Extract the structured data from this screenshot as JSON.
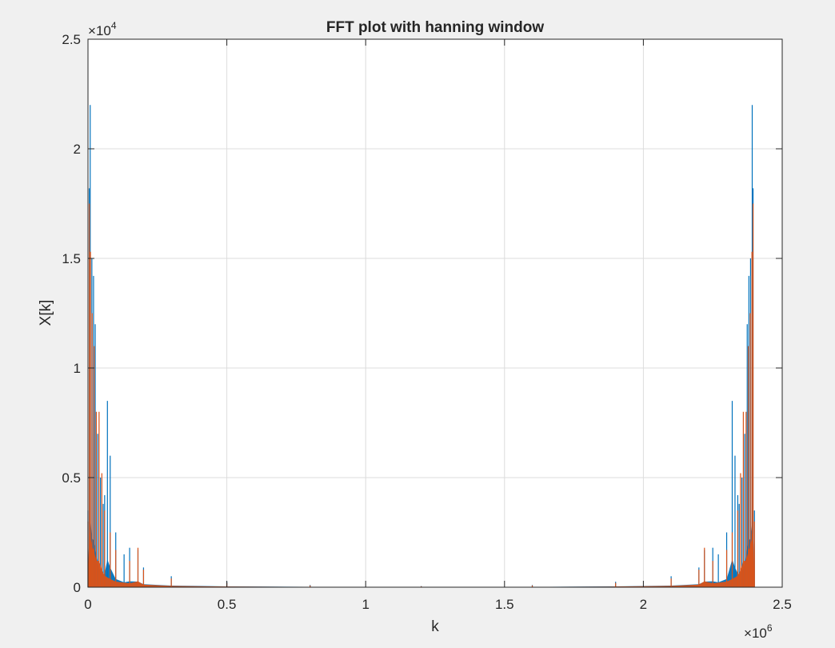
{
  "chart_data": {
    "type": "line",
    "title": "FFT plot with hanning window",
    "xlabel": "k",
    "ylabel": "X[k]",
    "xlim": [
      0,
      2500000
    ],
    "ylim": [
      0,
      25000
    ],
    "x_exponent_label": "10",
    "x_exponent": "6",
    "y_exponent_label": "10",
    "y_exponent": "4",
    "x_multiplier_symbol": "×",
    "y_multiplier_symbol": "×",
    "grid": true,
    "xticks": [
      0,
      500000,
      1000000,
      1500000,
      2000000,
      2500000
    ],
    "xtick_labels": [
      "0",
      "0.5",
      "1",
      "1.5",
      "2",
      "2.5"
    ],
    "yticks": [
      0,
      5000,
      10000,
      15000,
      20000,
      25000
    ],
    "ytick_labels": [
      "0",
      "0.5",
      "1",
      "1.5",
      "2",
      "2.5"
    ],
    "n_points": 2400000,
    "series": [
      {
        "color": "#0072BD",
        "peaks": [
          [
            0,
            3500
          ],
          [
            5000,
            18200
          ],
          [
            8000,
            22000
          ],
          [
            14000,
            15000
          ],
          [
            20000,
            14200
          ],
          [
            26000,
            12000
          ],
          [
            35000,
            7000
          ],
          [
            45000,
            5000
          ],
          [
            55000,
            3800
          ],
          [
            60000,
            4200
          ],
          [
            70000,
            8500
          ],
          [
            80000,
            6000
          ],
          [
            100000,
            2500
          ],
          [
            130000,
            1500
          ],
          [
            150000,
            1800
          ],
          [
            180000,
            1700
          ],
          [
            200000,
            900
          ],
          [
            300000,
            500
          ],
          [
            500000,
            250
          ],
          [
            800000,
            100
          ],
          [
            1200000,
            50
          ],
          [
            1600000,
            100
          ],
          [
            1900000,
            250
          ],
          [
            2100000,
            500
          ],
          [
            2200000,
            900
          ],
          [
            2220000,
            1700
          ],
          [
            2250000,
            1800
          ],
          [
            2270000,
            1500
          ],
          [
            2300000,
            2500
          ],
          [
            2320000,
            8500
          ],
          [
            2330000,
            6000
          ],
          [
            2340000,
            4200
          ],
          [
            2345000,
            3800
          ],
          [
            2355000,
            5000
          ],
          [
            2365000,
            7000
          ],
          [
            2374000,
            12000
          ],
          [
            2380000,
            14200
          ],
          [
            2386000,
            15000
          ],
          [
            2392000,
            22000
          ],
          [
            2395000,
            18200
          ],
          [
            2400000,
            3500
          ]
        ]
      },
      {
        "color": "#D95319",
        "peaks": [
          [
            0,
            3000
          ],
          [
            5000,
            17500
          ],
          [
            9000,
            15300
          ],
          [
            15000,
            12500
          ],
          [
            22000,
            11000
          ],
          [
            30000,
            8000
          ],
          [
            40000,
            8000
          ],
          [
            50000,
            5200
          ],
          [
            60000,
            3500
          ],
          [
            80000,
            2500
          ],
          [
            100000,
            1700
          ],
          [
            150000,
            1200
          ],
          [
            180000,
            1800
          ],
          [
            200000,
            800
          ],
          [
            300000,
            400
          ],
          [
            500000,
            200
          ],
          [
            800000,
            80
          ],
          [
            1200000,
            40
          ],
          [
            1600000,
            80
          ],
          [
            1900000,
            200
          ],
          [
            2100000,
            400
          ],
          [
            2200000,
            800
          ],
          [
            2220000,
            1800
          ],
          [
            2250000,
            1200
          ],
          [
            2300000,
            1700
          ],
          [
            2320000,
            2500
          ],
          [
            2340000,
            3500
          ],
          [
            2350000,
            5200
          ],
          [
            2360000,
            8000
          ],
          [
            2370000,
            8000
          ],
          [
            2378000,
            11000
          ],
          [
            2385000,
            12500
          ],
          [
            2391000,
            15300
          ],
          [
            2395000,
            17500
          ],
          [
            2400000,
            3000
          ]
        ]
      }
    ]
  }
}
